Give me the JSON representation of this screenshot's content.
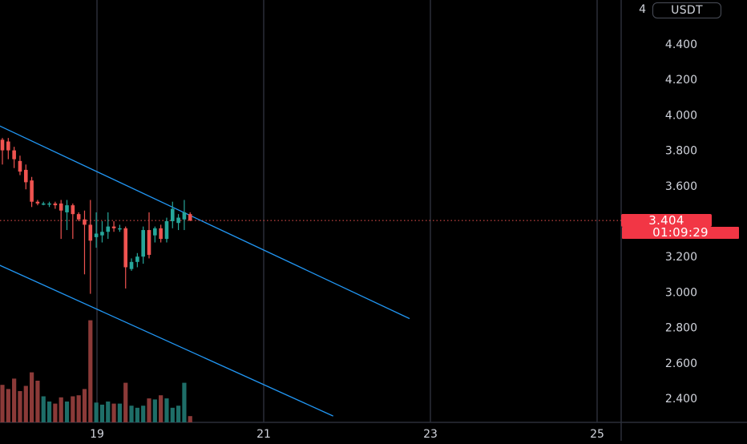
{
  "app": {
    "currency_label": "USDT",
    "top_partial_tick": "4"
  },
  "price_tags": {
    "last_price": "3.404",
    "countdown": "01:09:29"
  },
  "colors": {
    "background": "#000000",
    "grid": "#2a2e39",
    "bull": "#26a69a",
    "bear": "#ef5350",
    "bull_volume": "#1e6e68",
    "bear_volume": "#8b3a38",
    "trendline": "#2196f3",
    "tag_red": "#f23645",
    "axis_text": "#d1d4dc"
  },
  "chart_data": {
    "type": "candlestick",
    "title": "",
    "xlabel": "",
    "ylabel": "",
    "ylim": [
      2.25,
      4.6
    ],
    "y_ticks": [
      "4.400",
      "4.200",
      "4.000",
      "3.800",
      "3.600",
      "3.400",
      "3.200",
      "3.000",
      "2.800",
      "2.600",
      "2.400"
    ],
    "x_ticks": [
      "19",
      "21",
      "23",
      "25"
    ],
    "grid": true,
    "last_price": 3.404,
    "candles": [
      {
        "open": 3.86,
        "high": 3.87,
        "low": 3.72,
        "close": 3.8
      },
      {
        "open": 3.85,
        "high": 3.87,
        "low": 3.75,
        "close": 3.8
      },
      {
        "open": 3.8,
        "high": 3.82,
        "low": 3.7,
        "close": 3.75
      },
      {
        "open": 3.74,
        "high": 3.77,
        "low": 3.66,
        "close": 3.68
      },
      {
        "open": 3.69,
        "high": 3.72,
        "low": 3.58,
        "close": 3.62
      },
      {
        "open": 3.63,
        "high": 3.65,
        "low": 3.48,
        "close": 3.51
      },
      {
        "open": 3.51,
        "high": 3.52,
        "low": 3.49,
        "close": 3.5
      },
      {
        "open": 3.5,
        "high": 3.51,
        "low": 3.49,
        "close": 3.5
      },
      {
        "open": 3.5,
        "high": 3.51,
        "low": 3.48,
        "close": 3.5
      },
      {
        "open": 3.5,
        "high": 3.51,
        "low": 3.47,
        "close": 3.49
      },
      {
        "open": 3.5,
        "high": 3.52,
        "low": 3.3,
        "close": 3.46
      },
      {
        "open": 3.45,
        "high": 3.52,
        "low": 3.35,
        "close": 3.49
      },
      {
        "open": 3.49,
        "high": 3.5,
        "low": 3.3,
        "close": 3.44
      },
      {
        "open": 3.44,
        "high": 3.45,
        "low": 3.4,
        "close": 3.41
      },
      {
        "open": 3.41,
        "high": 3.46,
        "low": 3.1,
        "close": 3.38
      },
      {
        "open": 3.38,
        "high": 3.52,
        "low": 2.99,
        "close": 3.29
      },
      {
        "open": 3.31,
        "high": 3.45,
        "low": 3.25,
        "close": 3.33
      },
      {
        "open": 3.32,
        "high": 3.4,
        "low": 3.28,
        "close": 3.34
      },
      {
        "open": 3.34,
        "high": 3.45,
        "low": 3.3,
        "close": 3.37
      },
      {
        "open": 3.37,
        "high": 3.4,
        "low": 3.34,
        "close": 3.36
      },
      {
        "open": 3.36,
        "high": 3.38,
        "low": 3.34,
        "close": 3.36
      },
      {
        "open": 3.36,
        "high": 3.37,
        "low": 3.02,
        "close": 3.14
      },
      {
        "open": 3.13,
        "high": 3.19,
        "low": 3.12,
        "close": 3.17
      },
      {
        "open": 3.17,
        "high": 3.22,
        "low": 3.14,
        "close": 3.2
      },
      {
        "open": 3.2,
        "high": 3.37,
        "low": 3.16,
        "close": 3.35
      },
      {
        "open": 3.35,
        "high": 3.45,
        "low": 3.19,
        "close": 3.21
      },
      {
        "open": 3.32,
        "high": 3.37,
        "low": 3.28,
        "close": 3.36
      },
      {
        "open": 3.36,
        "high": 3.38,
        "low": 3.28,
        "close": 3.3
      },
      {
        "open": 3.3,
        "high": 3.42,
        "low": 3.28,
        "close": 3.4
      },
      {
        "open": 3.4,
        "high": 3.51,
        "low": 3.36,
        "close": 3.47
      },
      {
        "open": 3.39,
        "high": 3.44,
        "low": 3.35,
        "close": 3.42
      },
      {
        "open": 3.41,
        "high": 3.52,
        "low": 3.35,
        "close": 3.45
      },
      {
        "open": 3.44,
        "high": 3.45,
        "low": 3.4,
        "close": 3.404
      }
    ],
    "volume": [
      0.36,
      0.32,
      0.42,
      0.3,
      0.35,
      0.48,
      0.4,
      0.25,
      0.2,
      0.18,
      0.24,
      0.2,
      0.25,
      0.26,
      0.32,
      0.98,
      0.19,
      0.17,
      0.2,
      0.18,
      0.18,
      0.38,
      0.16,
      0.14,
      0.16,
      0.23,
      0.22,
      0.26,
      0.23,
      0.14,
      0.16,
      0.38,
      0.06
    ],
    "trendlines": [
      {
        "x1": "2024-01-17T10:00",
        "y1": 4.03,
        "x2": "2024-01-22T18:00",
        "y2": 2.85
      },
      {
        "x1": "2024-01-17T10:00",
        "y1": 3.24,
        "x2": "2024-01-21T20:00",
        "y2": 2.3
      }
    ]
  }
}
